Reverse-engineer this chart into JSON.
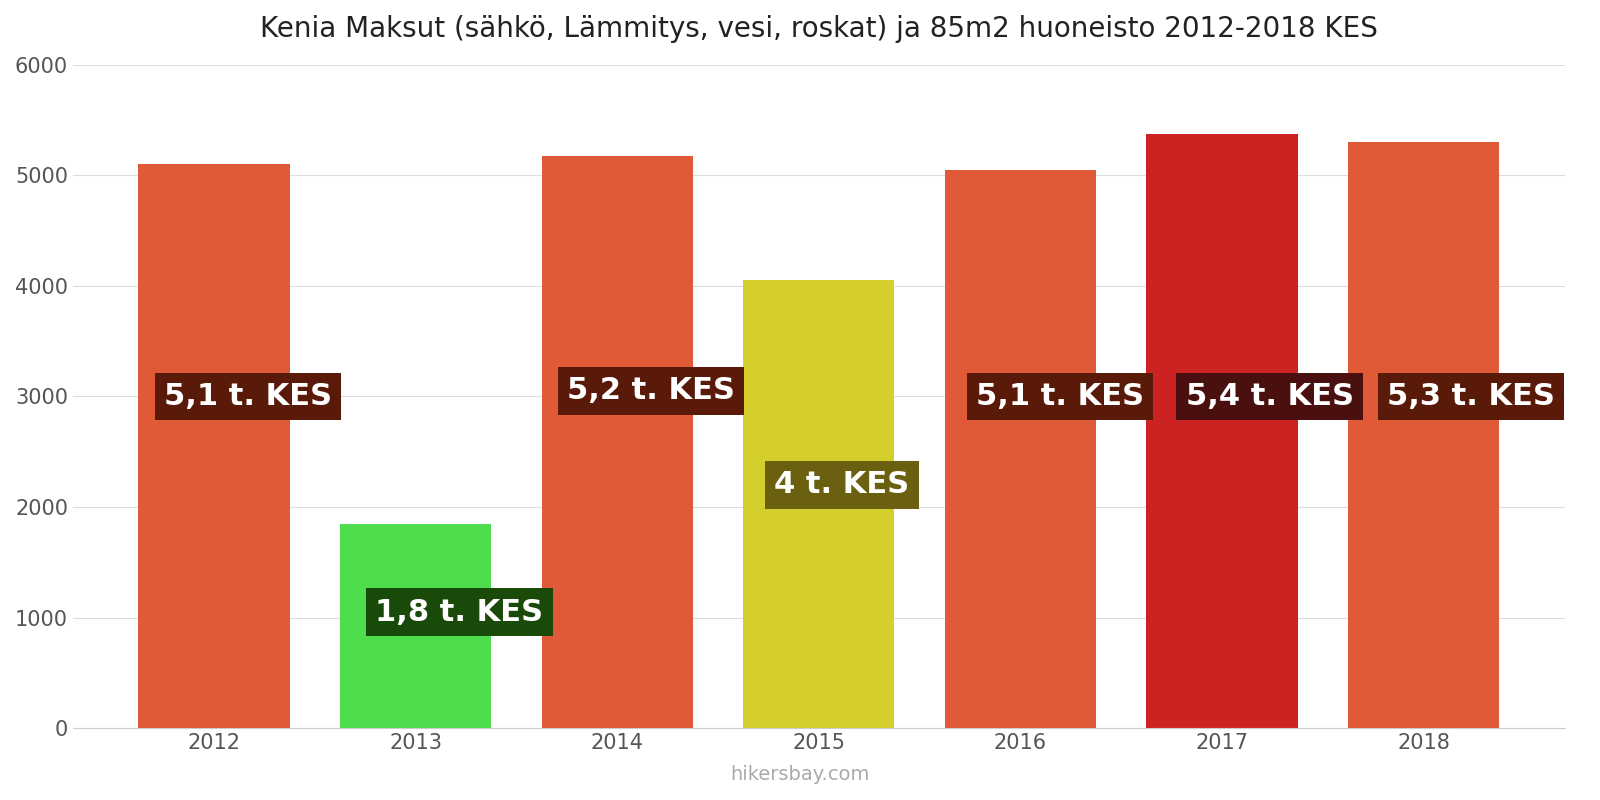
{
  "title": "Kenia Maksut (sähkö, Lämmitys, vesi, roskat) ja 85m2 huoneisto 2012-2018 KES",
  "years": [
    2012,
    2013,
    2014,
    2015,
    2016,
    2017,
    2018
  ],
  "values": [
    5100,
    1850,
    5175,
    4050,
    5050,
    5375,
    5300
  ],
  "labels": [
    "5,1 t. KES",
    "1,8 t. KES",
    "5,2 t. KES",
    "4 t. KES",
    "5,1 t. KES",
    "5,4 t. KES",
    "5,3 t. KES"
  ],
  "bar_colors": [
    "#e05a38",
    "#4ddd4d",
    "#e05a38",
    "#d4cf2c",
    "#e05a38",
    "#cc2222",
    "#e05a38"
  ],
  "label_bg_colors": [
    "#5a1a0a",
    "#1a4a0a",
    "#5a1a0a",
    "#6a6010",
    "#5a1a0a",
    "#4a1010",
    "#5a1a0a"
  ],
  "label_y_positions": [
    3000,
    1050,
    3050,
    2200,
    3000,
    3000,
    3000
  ],
  "label_x_offsets": [
    -0.25,
    -0.2,
    -0.25,
    -0.22,
    -0.22,
    -0.18,
    -0.18
  ],
  "ylim": [
    0,
    6000
  ],
  "yticks": [
    0,
    1000,
    2000,
    3000,
    4000,
    5000,
    6000
  ],
  "watermark": "hikersbay.com",
  "background_color": "#ffffff",
  "title_fontsize": 20,
  "label_fontsize": 22,
  "watermark_fontsize": 14,
  "bar_width": 0.75
}
